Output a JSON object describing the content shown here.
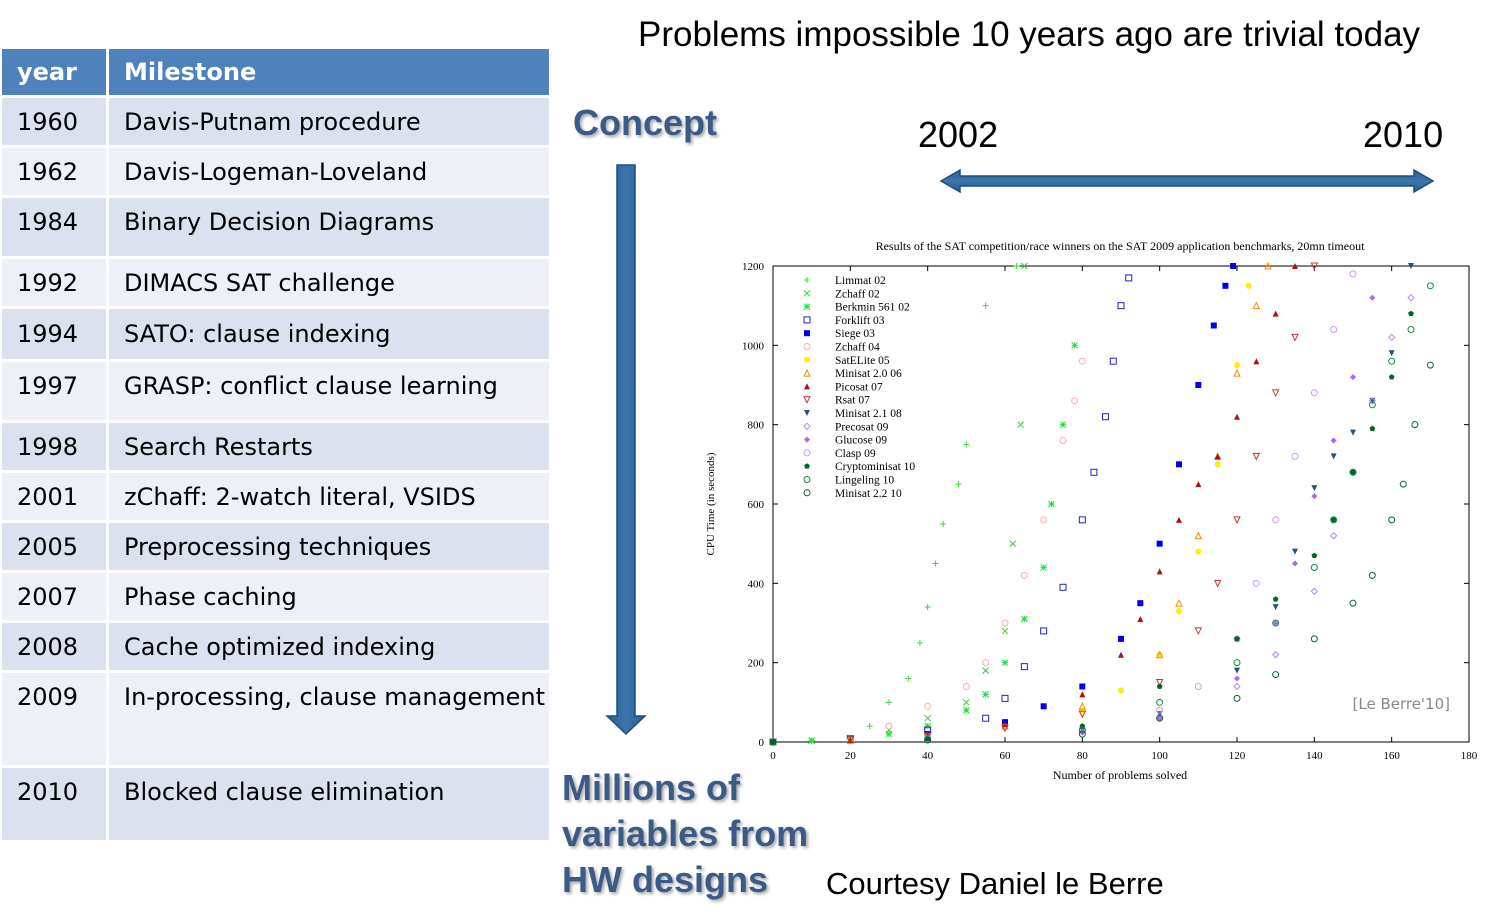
{
  "headline": "Problems impossible 10 years ago are trivial today",
  "table": {
    "header": {
      "year": "year",
      "milestone": "Milestone"
    },
    "rows": [
      {
        "year": "1960",
        "milestone": "Davis-Putnam procedure"
      },
      {
        "year": "1962",
        "milestone": "Davis-Logeman-Loveland"
      },
      {
        "year": "1984",
        "milestone": "Binary Decision Diagrams"
      },
      {
        "year": "1992",
        "milestone": "DIMACS SAT challenge"
      },
      {
        "year": "1994",
        "milestone": "SATO: clause indexing"
      },
      {
        "year": "1997",
        "milestone": "GRASP: conflict clause learning"
      },
      {
        "year": "1998",
        "milestone": "Search Restarts"
      },
      {
        "year": "2001",
        "milestone": "zChaff: 2-watch literal, VSIDS"
      },
      {
        "year": "2005",
        "milestone": "Preprocessing techniques"
      },
      {
        "year": "2007",
        "milestone": "Phase caching"
      },
      {
        "year": "2008",
        "milestone": "Cache optimized indexing"
      },
      {
        "year": "2009",
        "milestone": "In-processing, clause management"
      },
      {
        "year": "2010",
        "milestone": "Blocked clause elimination"
      }
    ]
  },
  "concept_label": "Concept",
  "millions_label": [
    "Millions of",
    "variables from",
    "HW designs"
  ],
  "timeline": {
    "start": "2002",
    "end": "2010"
  },
  "courtesy": "Courtesy Daniel le Berre",
  "colors": {
    "table_header": "#4f81bd",
    "table_row": "#dbe1ee",
    "table_row_alt": "#edf0f7",
    "arrow": "#1f4e79",
    "callout_text": "#3b5b86"
  },
  "chart_data": {
    "type": "scatter",
    "title": "Results of the SAT competition/race winners on the SAT 2009 application benchmarks, 20mn timeout",
    "xlabel": "Number of problems solved",
    "ylabel": "CPU Time (in seconds)",
    "xlim": [
      0,
      180
    ],
    "ylim": [
      0,
      1200
    ],
    "xticks": [
      0,
      20,
      40,
      60,
      80,
      100,
      120,
      140,
      160,
      180
    ],
    "yticks": [
      0,
      200,
      400,
      600,
      800,
      1000,
      1200
    ],
    "legend_position": "top-left",
    "credit": "[Le Berre'10]",
    "series": [
      {
        "name": "Limmat 02",
        "color": "#33dd33",
        "marker": "plus",
        "x": [
          0,
          10,
          20,
          25,
          30,
          35,
          38,
          40,
          42,
          44,
          48,
          50,
          55,
          63
        ],
        "y": [
          0,
          3,
          10,
          40,
          100,
          160,
          250,
          340,
          450,
          550,
          650,
          750,
          1100,
          1200
        ]
      },
      {
        "name": "Zchaff 02",
        "color": "#33cc33",
        "marker": "x",
        "x": [
          0,
          10,
          20,
          30,
          40,
          50,
          55,
          60,
          62,
          64,
          65
        ],
        "y": [
          0,
          4,
          10,
          30,
          60,
          100,
          180,
          280,
          500,
          800,
          1200
        ]
      },
      {
        "name": "Berkmin 561 02",
        "color": "#22dd44",
        "marker": "asterisk",
        "x": [
          0,
          10,
          20,
          30,
          40,
          50,
          55,
          60,
          65,
          70,
          72,
          75,
          78
        ],
        "y": [
          0,
          3,
          8,
          20,
          40,
          80,
          120,
          200,
          310,
          440,
          600,
          800,
          1000
        ]
      },
      {
        "name": "Forklift 03",
        "color": "#2222cc",
        "marker": "square-open",
        "x": [
          0,
          20,
          40,
          55,
          60,
          65,
          70,
          75,
          80,
          83,
          86,
          88,
          90,
          92
        ],
        "y": [
          0,
          8,
          30,
          60,
          110,
          190,
          280,
          390,
          560,
          680,
          820,
          960,
          1100,
          1170
        ]
      },
      {
        "name": "Siege 03",
        "color": "#0000ee",
        "marker": "square",
        "x": [
          0,
          20,
          40,
          60,
          70,
          80,
          90,
          95,
          100,
          105,
          110,
          114,
          117,
          119
        ],
        "y": [
          0,
          5,
          20,
          50,
          90,
          140,
          260,
          350,
          500,
          700,
          900,
          1050,
          1150,
          1200
        ]
      },
      {
        "name": "Zchaff 04",
        "color": "#ffaaaa",
        "marker": "circle-open",
        "x": [
          0,
          20,
          30,
          40,
          50,
          55,
          60,
          65,
          70,
          75,
          78,
          80
        ],
        "y": [
          0,
          5,
          40,
          90,
          140,
          200,
          300,
          420,
          560,
          760,
          860,
          960
        ]
      },
      {
        "name": "SatELite 05",
        "color": "#ffee00",
        "marker": "circle",
        "x": [
          0,
          20,
          40,
          60,
          80,
          90,
          100,
          105,
          110,
          115,
          120,
          123
        ],
        "y": [
          0,
          5,
          15,
          40,
          80,
          130,
          220,
          330,
          480,
          700,
          950,
          1150
        ]
      },
      {
        "name": "Minisat 2.0 06",
        "color": "#ff8800",
        "marker": "triangle-open",
        "x": [
          0,
          20,
          40,
          60,
          80,
          100,
          105,
          110,
          115,
          120,
          125,
          128
        ],
        "y": [
          0,
          4,
          15,
          40,
          90,
          220,
          350,
          520,
          720,
          930,
          1100,
          1200
        ]
      },
      {
        "name": "Picosat 07",
        "color": "#aa1111",
        "marker": "triangle",
        "x": [
          0,
          20,
          40,
          60,
          80,
          90,
          95,
          100,
          105,
          110,
          115,
          120,
          125,
          130,
          135
        ],
        "y": [
          0,
          5,
          18,
          45,
          120,
          220,
          310,
          430,
          560,
          650,
          720,
          820,
          960,
          1080,
          1200
        ]
      },
      {
        "name": "Rsat 07",
        "color": "#cc3333",
        "marker": "triangle-down-open",
        "x": [
          0,
          20,
          40,
          60,
          80,
          100,
          110,
          115,
          120,
          125,
          130,
          135,
          140
        ],
        "y": [
          0,
          5,
          15,
          35,
          70,
          150,
          280,
          400,
          560,
          720,
          880,
          1020,
          1200
        ]
      },
      {
        "name": "Minisat 2.1 08",
        "color": "#225577",
        "marker": "triangle-down",
        "x": [
          0,
          40,
          80,
          100,
          120,
          130,
          135,
          140,
          145,
          150,
          155,
          160,
          165
        ],
        "y": [
          0,
          8,
          30,
          70,
          180,
          340,
          480,
          640,
          720,
          780,
          860,
          980,
          1200
        ]
      },
      {
        "name": "Precosat 09",
        "color": "#bb88ee",
        "marker": "diamond-open",
        "x": [
          0,
          40,
          80,
          100,
          120,
          130,
          140,
          145,
          150,
          155,
          160,
          165
        ],
        "y": [
          0,
          6,
          25,
          60,
          140,
          220,
          380,
          520,
          680,
          860,
          1020,
          1120
        ]
      },
      {
        "name": "Glucose 09",
        "color": "#aa66ee",
        "marker": "diamond",
        "x": [
          0,
          40,
          80,
          100,
          120,
          130,
          135,
          140,
          145,
          150,
          155
        ],
        "y": [
          0,
          6,
          25,
          60,
          160,
          300,
          450,
          620,
          760,
          920,
          1120
        ]
      },
      {
        "name": "Clasp 09",
        "color": "#cc99ee",
        "marker": "circle-open",
        "x": [
          0,
          40,
          80,
          100,
          110,
          120,
          125,
          130,
          135,
          140,
          145,
          150
        ],
        "y": [
          0,
          8,
          30,
          80,
          140,
          260,
          400,
          560,
          720,
          880,
          1040,
          1180
        ]
      },
      {
        "name": "Cryptominisat 10",
        "color": "#006622",
        "marker": "pentagon",
        "x": [
          0,
          40,
          80,
          100,
          120,
          130,
          140,
          145,
          150,
          155,
          160,
          165
        ],
        "y": [
          0,
          8,
          40,
          140,
          260,
          360,
          470,
          560,
          680,
          790,
          920,
          1080
        ]
      },
      {
        "name": "Lingeling 10",
        "color": "#118844",
        "marker": "circle-dot-open",
        "x": [
          0,
          40,
          80,
          100,
          120,
          130,
          140,
          145,
          150,
          155,
          160,
          165,
          170
        ],
        "y": [
          0,
          6,
          30,
          100,
          200,
          300,
          440,
          560,
          680,
          850,
          960,
          1040,
          1150
        ]
      },
      {
        "name": "Minisat 2.2 10",
        "color": "#006633",
        "marker": "circle-dot-open",
        "x": [
          0,
          40,
          80,
          100,
          120,
          130,
          140,
          150,
          155,
          160,
          163,
          166,
          170
        ],
        "y": [
          0,
          5,
          20,
          60,
          110,
          170,
          260,
          350,
          420,
          560,
          650,
          800,
          950
        ]
      }
    ]
  }
}
